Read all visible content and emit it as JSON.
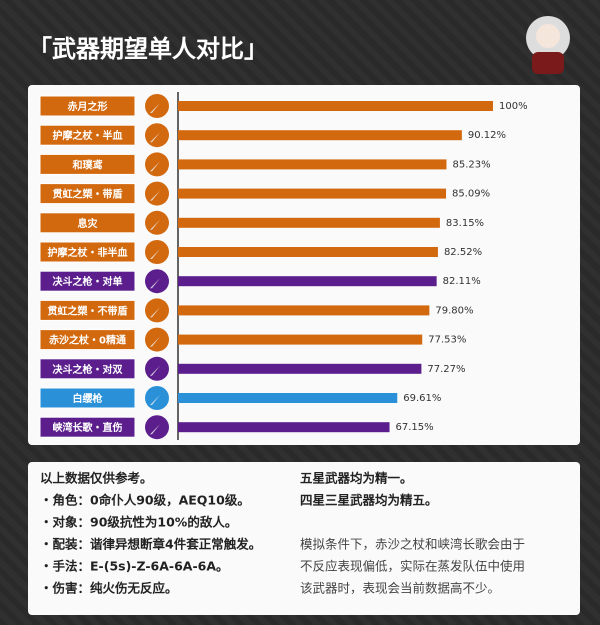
{
  "chart_data": {
    "type": "bar",
    "title": "「武器期望单人对比」",
    "categories": [
      "赤月之形",
      "护摩之杖・半血",
      "和璞鸢",
      "贯虹之槊・带盾",
      "息灾",
      "护摩之杖・非半血",
      "决斗之枪・对单",
      "贯虹之槊・不带盾",
      "赤沙之杖・0精通",
      "决斗之枪・对双",
      "白缨枪",
      "峡湾长歌・直伤"
    ],
    "values": [
      100,
      90.12,
      85.23,
      85.09,
      83.15,
      82.52,
      82.11,
      79.8,
      77.53,
      77.27,
      69.61,
      67.15
    ],
    "value_labels": [
      "100%",
      "90.12%",
      "85.23%",
      "85.09%",
      "83.15%",
      "82.52%",
      "82.11%",
      "79.80%",
      "77.53%",
      "77.27%",
      "69.61%",
      "67.15%"
    ],
    "colors": [
      "#d2690f",
      "#d2690f",
      "#d2690f",
      "#d2690f",
      "#d2690f",
      "#d2690f",
      "#5b1e8c",
      "#d2690f",
      "#d2690f",
      "#5b1e8c",
      "#2a90d8",
      "#5b1e8c"
    ],
    "xlim": [
      0,
      100
    ]
  },
  "notes": {
    "left": [
      "以上数据仅供参考。",
      "・角色：0命仆人90级，AEQ10级。",
      "・对象：90级抗性为10%的敌人。",
      "・配装：谐律异想断章4件套正常触发。",
      "・手法：E-(5s)-Z-6A-6A-6A。",
      "・伤害：纯火伤无反应。"
    ],
    "right": [
      "五星武器均为精一。",
      "四星三星武器均为精五。"
    ],
    "paragraph": [
      "模拟条件下，赤沙之杖和峡湾长歌会由于",
      "不反应表现偏低，实际在蒸发队伍中使用",
      "该武器时，表现会当前数据高不少。"
    ]
  }
}
